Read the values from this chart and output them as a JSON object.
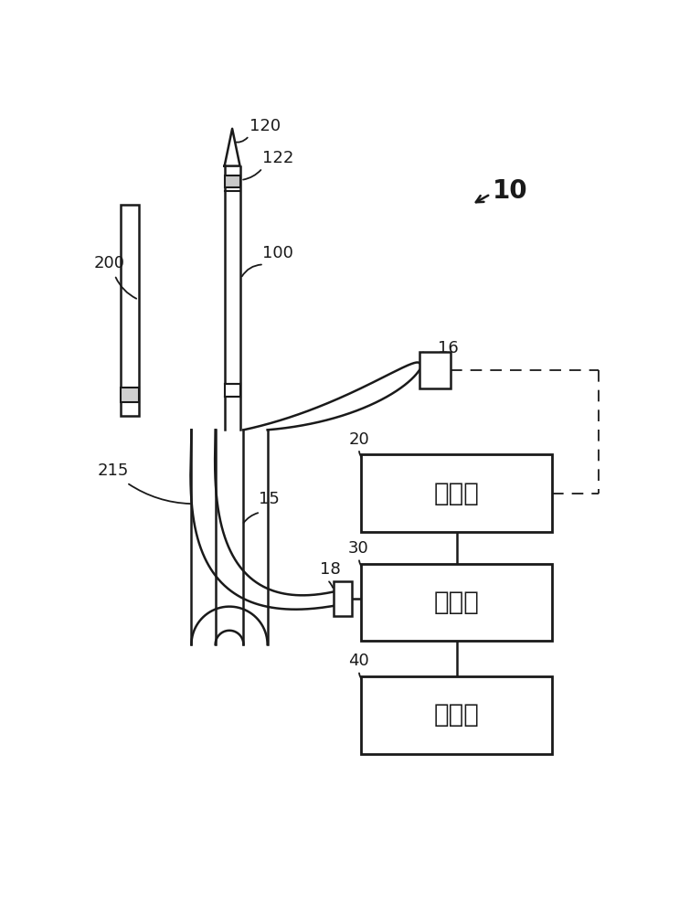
{
  "bg_color": "#ffffff",
  "line_color": "#1a1a1a",
  "box_20_text": "发生器",
  "box_30_text": "控制器",
  "box_40_text": "驱动器",
  "label_10": "10",
  "label_120": "120",
  "label_122": "122",
  "label_100": "100",
  "label_200": "200",
  "label_15": "15",
  "label_215": "215",
  "label_16": "16",
  "label_18": "18",
  "label_20": "20",
  "label_30": "30",
  "label_40": "40"
}
